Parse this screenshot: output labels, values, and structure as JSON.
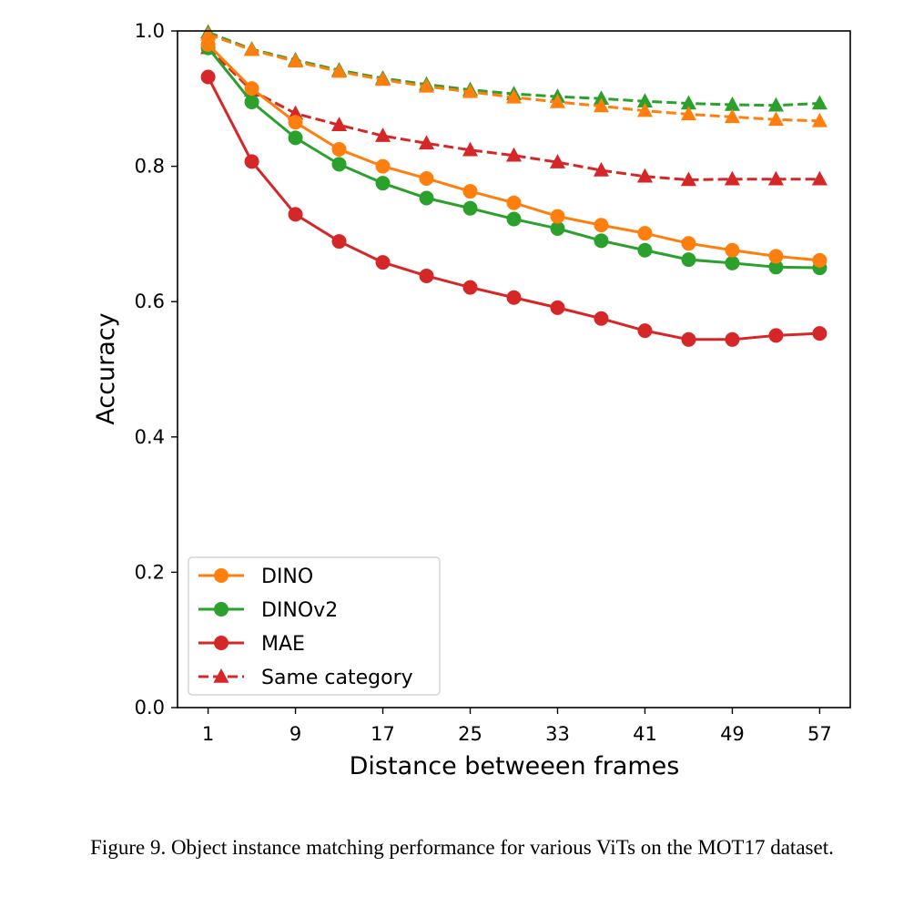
{
  "chart_data": {
    "type": "line",
    "xlabel": "Distance betweeen frames",
    "ylabel": "Accuracy",
    "x": [
      1,
      5,
      9,
      13,
      17,
      21,
      25,
      29,
      33,
      37,
      41,
      45,
      49,
      53,
      57
    ],
    "xticks": [
      1,
      9,
      17,
      25,
      33,
      41,
      49,
      57
    ],
    "yticks": [
      0.0,
      0.2,
      0.4,
      0.6,
      0.8,
      1.0
    ],
    "ytick_labels": [
      "0.0",
      "0.2",
      "0.4",
      "0.6",
      "0.8",
      "1.0"
    ],
    "xlim": [
      -1.8,
      59.8
    ],
    "ylim": [
      0.0,
      1.0
    ],
    "grid": false,
    "legend_position": "lower-left",
    "series": [
      {
        "name": "DINO",
        "color": "#ff7f0e",
        "linestyle": "solid",
        "marker": "circle",
        "values": [
          0.98,
          0.915,
          0.865,
          0.825,
          0.8,
          0.782,
          0.763,
          0.746,
          0.726,
          0.713,
          0.701,
          0.686,
          0.676,
          0.667,
          0.661
        ]
      },
      {
        "name": "DINOv2",
        "color": "#2ca02c",
        "linestyle": "solid",
        "marker": "circle",
        "values": [
          0.975,
          0.895,
          0.842,
          0.803,
          0.775,
          0.753,
          0.738,
          0.722,
          0.708,
          0.69,
          0.676,
          0.662,
          0.657,
          0.651,
          0.65
        ]
      },
      {
        "name": "MAE",
        "color": "#d62728",
        "linestyle": "solid",
        "marker": "circle",
        "values": [
          0.932,
          0.807,
          0.729,
          0.689,
          0.658,
          0.638,
          0.621,
          0.606,
          0.591,
          0.575,
          0.557,
          0.544,
          0.544,
          0.55,
          0.553
        ]
      },
      {
        "name": "Same category",
        "color": "#d62728",
        "linestyle": "dashed",
        "marker": "triangle",
        "values": [
          0.975,
          0.912,
          0.878,
          0.861,
          0.845,
          0.834,
          0.824,
          0.816,
          0.806,
          0.794,
          0.785,
          0.78,
          0.781,
          0.781,
          0.781
        ]
      },
      {
        "name": "DINO same category",
        "in_legend": false,
        "color": "#ff7f0e",
        "linestyle": "dashed",
        "marker": "triangle",
        "values": [
          0.995,
          0.972,
          0.955,
          0.94,
          0.928,
          0.918,
          0.91,
          0.902,
          0.895,
          0.889,
          0.882,
          0.877,
          0.873,
          0.869,
          0.867
        ]
      },
      {
        "name": "DINOv2 same category",
        "in_legend": false,
        "color": "#2ca02c",
        "linestyle": "dashed",
        "marker": "triangle",
        "values": [
          0.998,
          0.973,
          0.957,
          0.942,
          0.93,
          0.921,
          0.913,
          0.907,
          0.903,
          0.9,
          0.896,
          0.893,
          0.891,
          0.89,
          0.893
        ]
      }
    ]
  },
  "caption": "Figure 9. Object instance matching performance for various ViTs on the MOT17 dataset."
}
